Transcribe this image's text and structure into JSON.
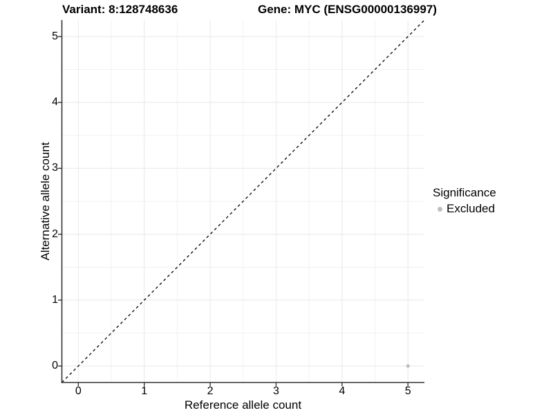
{
  "chart_data": {
    "type": "scatter",
    "title_left": "Variant: 8:128748636",
    "title_right": "Gene: MYC (ENSG00000136997)",
    "xlabel": "Reference allele count",
    "ylabel": "Alternative allele count",
    "xlim": [
      -0.25,
      5.25
    ],
    "ylim": [
      -0.25,
      5.25
    ],
    "x_ticks": [
      0,
      1,
      2,
      3,
      4,
      5
    ],
    "y_ticks": [
      0,
      1,
      2,
      3,
      4,
      5
    ],
    "grid": true,
    "minor_grid_step": 0.5,
    "reference_line": {
      "type": "identity",
      "style": "dashed",
      "color": "#000000"
    },
    "points": [
      {
        "x": 5,
        "y": 0,
        "group": "Excluded"
      }
    ],
    "point_color": "#bebebe",
    "legend": {
      "title": "Significance",
      "position": "right",
      "items": [
        {
          "label": "Excluded",
          "color": "#bebebe"
        }
      ]
    },
    "colors": {
      "axis": "#333333",
      "grid_major": "#e8e8e8",
      "grid_minor": "#f1f1f1",
      "background": "#ffffff"
    }
  }
}
